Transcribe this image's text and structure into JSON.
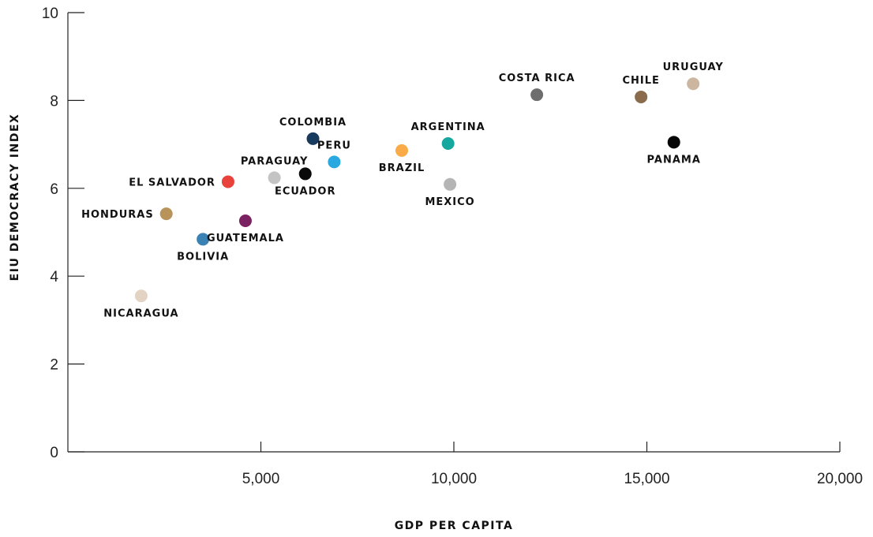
{
  "chart_data": {
    "type": "scatter",
    "title": "",
    "xlabel": "GDP PER CAPITA",
    "ylabel": "EIU DEMOCRACY INDEX",
    "xlim": [
      0,
      20000
    ],
    "ylim": [
      0,
      10
    ],
    "x_ticks": [
      {
        "value": 5000,
        "label": "5,000"
      },
      {
        "value": 10000,
        "label": "10,000"
      },
      {
        "value": 15000,
        "label": "15,000"
      },
      {
        "value": 20000,
        "label": "20,000"
      }
    ],
    "y_ticks": [
      {
        "value": 0,
        "label": "0"
      },
      {
        "value": 2,
        "label": "2"
      },
      {
        "value": 4,
        "label": "4"
      },
      {
        "value": 6,
        "label": "6"
      },
      {
        "value": 8,
        "label": "8"
      },
      {
        "value": 10,
        "label": "10"
      }
    ],
    "grid": false,
    "points": [
      {
        "label": "NICARAGUA",
        "x": 1900,
        "y": 3.55,
        "color": "#e3d3c3",
        "label_pos": "below"
      },
      {
        "label": "HONDURAS",
        "x": 2550,
        "y": 5.42,
        "color": "#b8935a",
        "label_pos": "left"
      },
      {
        "label": "BOLIVIA",
        "x": 3500,
        "y": 4.84,
        "color": "#3a82b4",
        "label_pos": "below"
      },
      {
        "label": "EL SALVADOR",
        "x": 4150,
        "y": 6.15,
        "color": "#e8423a",
        "label_pos": "left"
      },
      {
        "label": "GUATEMALA",
        "x": 4600,
        "y": 5.26,
        "color": "#7b2262",
        "label_pos": "below"
      },
      {
        "label": "PARAGUAY",
        "x": 5350,
        "y": 6.24,
        "color": "#c4c4c4",
        "label_pos": "above"
      },
      {
        "label": "ECUADOR",
        "x": 6150,
        "y": 6.33,
        "color": "#0a0a0a",
        "label_pos": "below"
      },
      {
        "label": "COLOMBIA",
        "x": 6350,
        "y": 7.13,
        "color": "#173a5e",
        "label_pos": "above"
      },
      {
        "label": "PERU",
        "x": 6900,
        "y": 6.6,
        "color": "#2aa9e0",
        "label_pos": "above"
      },
      {
        "label": "BRAZIL",
        "x": 8650,
        "y": 6.86,
        "color": "#f9ab48",
        "label_pos": "below"
      },
      {
        "label": "ARGENTINA",
        "x": 9850,
        "y": 7.02,
        "color": "#16a89e",
        "label_pos": "above"
      },
      {
        "label": "MEXICO",
        "x": 9900,
        "y": 6.09,
        "color": "#b5b5b5",
        "label_pos": "below"
      },
      {
        "label": "COSTA RICA",
        "x": 12150,
        "y": 8.13,
        "color": "#6e6e6e",
        "label_pos": "above"
      },
      {
        "label": "CHILE",
        "x": 14850,
        "y": 8.08,
        "color": "#8a6b4c",
        "label_pos": "above"
      },
      {
        "label": "PANAMA",
        "x": 15700,
        "y": 7.05,
        "color": "#050505",
        "label_pos": "below"
      },
      {
        "label": "URUGUAY",
        "x": 16200,
        "y": 8.38,
        "color": "#cdb6a0",
        "label_pos": "above"
      }
    ]
  }
}
